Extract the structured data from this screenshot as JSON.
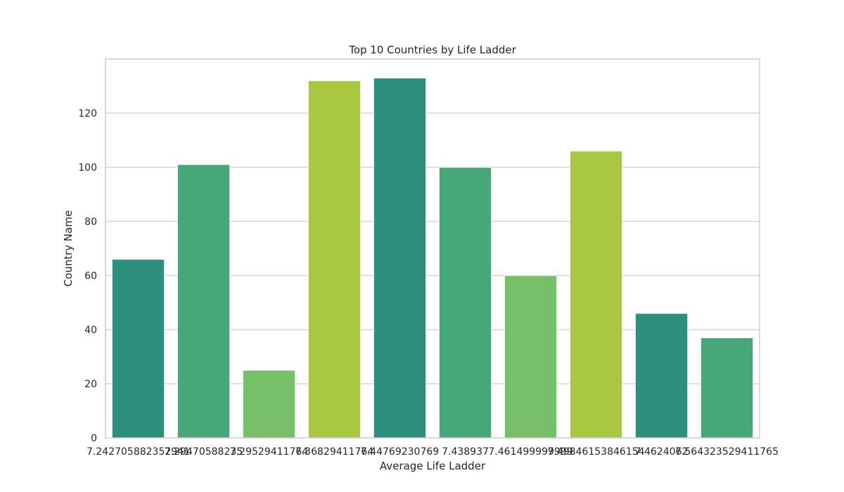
{
  "chart_data": {
    "type": "bar",
    "title": "Top 10 Countries by Life Ladder",
    "xlabel": "Average Life Ladder",
    "ylabel": "Country Name",
    "categories": [
      "7.242705882352941",
      "7.294705882352941",
      "7.295294117647059",
      "7.368294117647059",
      "7.447692307692308",
      "7.438937",
      "7.461499999999999",
      "7.49846153846154",
      "7.4624062",
      "7.564323529411765"
    ],
    "tick_labels_as_printed": [
      "7.242705882352941",
      "7.29470588235",
      "7.29529411764",
      "7.36829411764",
      "7.44769230769",
      "7.438937",
      "7.461499999999",
      "7.49846153846154",
      "7.4624062",
      "7.564323529411765"
    ],
    "values": [
      66,
      101,
      25,
      132,
      133,
      100,
      60,
      106,
      46,
      37
    ],
    "colors": [
      "#2e8f7e",
      "#46a878",
      "#77bf69",
      "#a9c841",
      "#2e8f7e",
      "#46a878",
      "#77bf69",
      "#a9c841",
      "#2e8f7e",
      "#46a878"
    ],
    "ylim": [
      0,
      140
    ],
    "yticks": [
      0,
      20,
      40,
      60,
      80,
      100,
      120
    ],
    "grid": "y",
    "legend": "none"
  }
}
